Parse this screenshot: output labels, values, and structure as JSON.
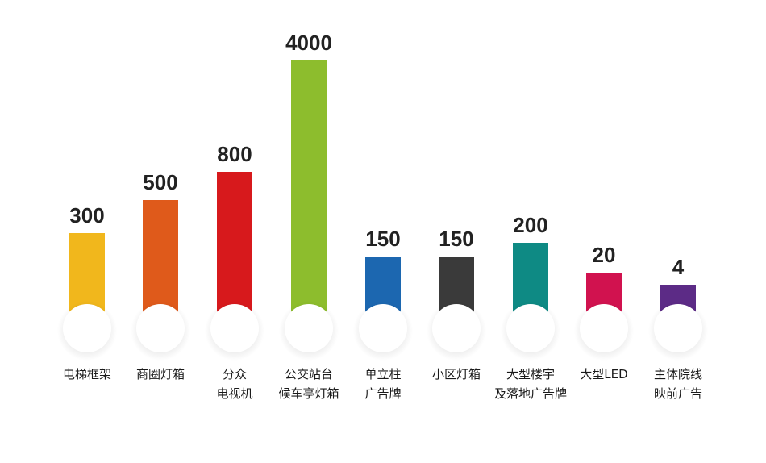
{
  "chart_data": {
    "type": "bar",
    "title": "",
    "xlabel": "",
    "ylabel": "",
    "categories": [
      [
        "电梯框架"
      ],
      [
        "商圈灯箱"
      ],
      [
        "分众",
        "电视机"
      ],
      [
        "公交站台",
        "候车亭灯箱"
      ],
      [
        "单立柱",
        "广告牌"
      ],
      [
        "小区灯箱"
      ],
      [
        "大型楼宇",
        "及落地广告牌"
      ],
      [
        "大型LED"
      ],
      [
        "主体院线",
        "映前广告"
      ]
    ],
    "values": [
      300,
      500,
      800,
      4000,
      150,
      150,
      200,
      20,
      4
    ],
    "colors": [
      "#f1b71c",
      "#df5a1b",
      "#d7191c",
      "#8dbd2d",
      "#1c67b0",
      "#3a3a3a",
      "#0e8a84",
      "#d1124f",
      "#5c2b86"
    ],
    "grid": false,
    "legend": "none"
  }
}
